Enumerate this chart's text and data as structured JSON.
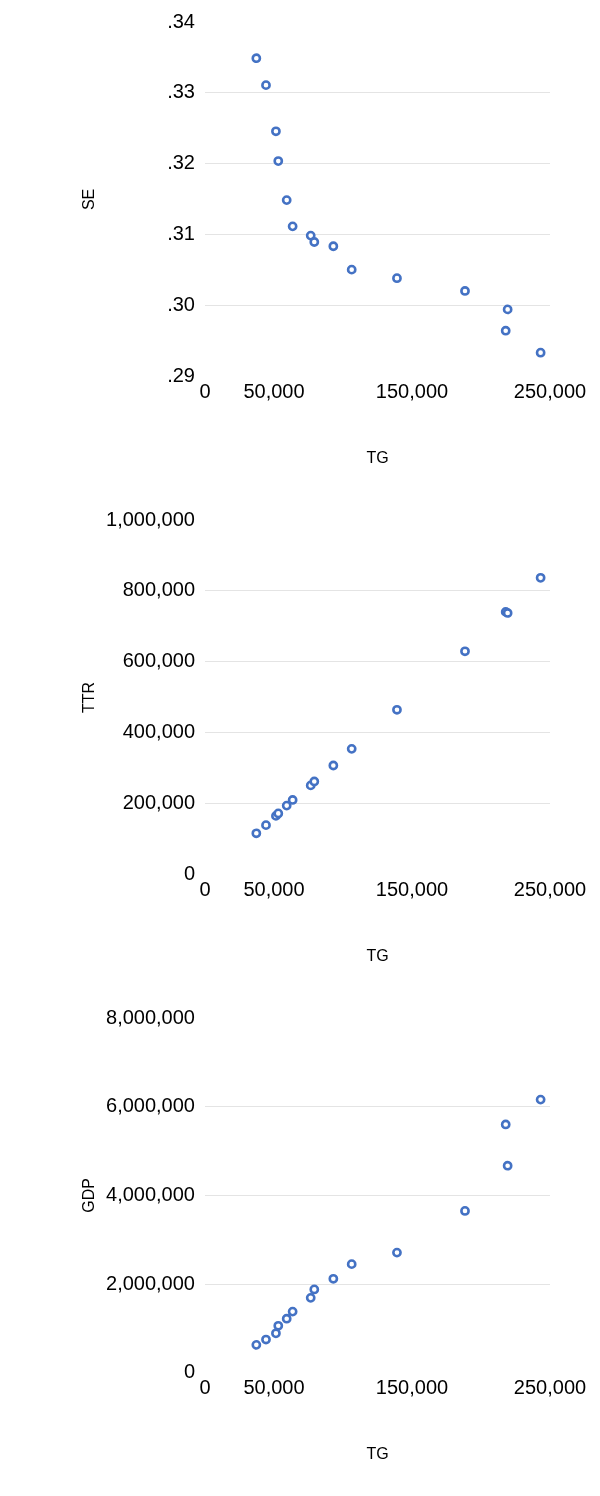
{
  "chart_data": [
    {
      "type": "scatter",
      "xlabel": "TG",
      "ylabel": "SE",
      "marker": "circle",
      "grid": "y",
      "legend": false,
      "x": [
        37200,
        44200,
        51400,
        53100,
        59200,
        63500,
        76600,
        79200,
        93000,
        106300,
        139100,
        188400,
        217900,
        219300,
        243200
      ],
      "series": [
        {
          "color": "#4472c4",
          "values": [
            0.3349,
            0.3311,
            0.3246,
            0.3204,
            0.3149,
            0.3112,
            0.3099,
            0.309,
            0.3084,
            0.3051,
            0.3039,
            0.3021,
            0.2965,
            0.2995,
            0.2934
          ]
        }
      ],
      "xlim": [
        0,
        250000
      ],
      "xticks": [
        {
          "value": 0,
          "label": "0"
        },
        {
          "value": 50000,
          "label": "50,000"
        },
        {
          "value": 150000,
          "label": "150,000"
        },
        {
          "value": 250000,
          "label": "250,000"
        }
      ],
      "ylim": [
        0.29,
        0.34
      ],
      "yticks": [
        {
          "value": 0.29,
          "label": ".29"
        },
        {
          "value": 0.3,
          "label": ".30"
        },
        {
          "value": 0.31,
          "label": ".31"
        },
        {
          "value": 0.32,
          "label": ".32"
        },
        {
          "value": 0.33,
          "label": ".33"
        },
        {
          "value": 0.34,
          "label": ".34"
        }
      ]
    },
    {
      "type": "scatter",
      "xlabel": "TG",
      "ylabel": "TTR",
      "marker": "circle",
      "grid": "y",
      "legend": false,
      "x": [
        37200,
        44200,
        51400,
        53100,
        59200,
        63500,
        76600,
        79200,
        93000,
        106300,
        139100,
        188400,
        217900,
        219300,
        243200
      ],
      "series": [
        {
          "color": "#4472c4",
          "values": [
            117000,
            140000,
            166000,
            173000,
            195000,
            211000,
            252000,
            263000,
            308000,
            355000,
            465000,
            630000,
            741000,
            738000,
            837000
          ]
        }
      ],
      "xlim": [
        0,
        250000
      ],
      "xticks": [
        {
          "value": 0,
          "label": "0"
        },
        {
          "value": 50000,
          "label": "50,000"
        },
        {
          "value": 150000,
          "label": "150,000"
        },
        {
          "value": 250000,
          "label": "250,000"
        }
      ],
      "ylim": [
        0,
        1000000
      ],
      "yticks": [
        0,
        {
          "value": 200000,
          "label": "200,000"
        },
        {
          "value": 400000,
          "label": "400,000"
        },
        {
          "value": 600000,
          "label": "600,000"
        },
        {
          "value": 800000,
          "label": "800,000"
        },
        {
          "value": 1000000,
          "label": "1,000,000"
        }
      ]
    },
    {
      "type": "scatter",
      "xlabel": "TG",
      "ylabel": "GDP",
      "marker": "circle",
      "grid": "y",
      "legend": false,
      "x": [
        37200,
        44200,
        51400,
        53100,
        59200,
        63500,
        76600,
        79200,
        93000,
        106300,
        139100,
        188400,
        217900,
        219300,
        243200
      ],
      "series": [
        {
          "color": "#4472c4",
          "values": [
            630000,
            750000,
            890000,
            1060000,
            1220000,
            1380000,
            1690000,
            1880000,
            2120000,
            2450000,
            2710000,
            3650000,
            5600000,
            4670000,
            6160000
          ]
        }
      ],
      "xlim": [
        0,
        250000
      ],
      "xticks": [
        {
          "value": 0,
          "label": "0"
        },
        {
          "value": 50000,
          "label": "50,000"
        },
        {
          "value": 150000,
          "label": "150,000"
        },
        {
          "value": 250000,
          "label": "250,000"
        }
      ],
      "ylim": [
        0,
        8000000
      ],
      "yticks": [
        0,
        {
          "value": 2000000,
          "label": "2,000,000"
        },
        {
          "value": 4000000,
          "label": "4,000,000"
        },
        {
          "value": 6000000,
          "label": "6,000,000"
        },
        {
          "value": 8000000,
          "label": "8,000,000"
        }
      ]
    }
  ]
}
